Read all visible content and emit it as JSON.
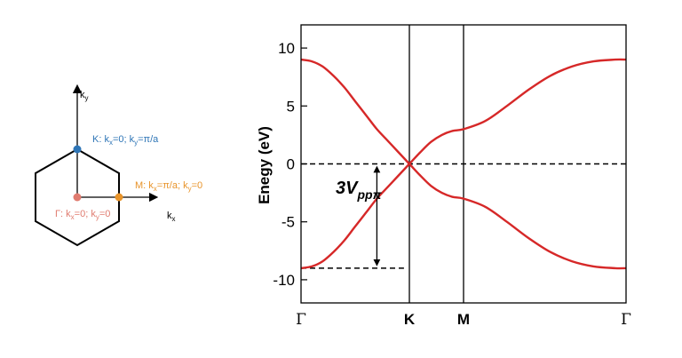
{
  "brillouin_zone": {
    "axis_x_label": "k",
    "axis_x_sub": "x",
    "axis_y_label": "k",
    "axis_y_sub": "y",
    "points": [
      {
        "name": "K",
        "color": "#2e75b6",
        "text": [
          "K: k",
          "x",
          "=0; k",
          "y",
          "=π/a"
        ]
      },
      {
        "name": "M",
        "color": "#e8942b",
        "text": [
          "M: k",
          "x",
          "=π/a; k",
          "y",
          "=0"
        ]
      },
      {
        "name": "Gamma",
        "color": "#e07b6f",
        "text": [
          "Γ: k",
          "x",
          "=0; k",
          "y",
          "=0"
        ]
      }
    ]
  },
  "chart_data": {
    "type": "line",
    "ylabel": "Enegy (eV)",
    "ylim": [
      -12,
      12
    ],
    "yticks": [
      10,
      5,
      0,
      -5,
      -10
    ],
    "xlim": [
      0,
      3
    ],
    "x_ticks": [
      {
        "pos": 0,
        "label": "Γ",
        "style": "serif"
      },
      {
        "pos": 1,
        "label": "K",
        "style": "bold"
      },
      {
        "pos": 1.5,
        "label": "M",
        "style": "bold"
      },
      {
        "pos": 3,
        "label": "Γ",
        "style": "serif"
      }
    ],
    "vertical_lines": [
      1,
      1.5
    ],
    "dashed_lines": [
      {
        "y": 0,
        "x_from": 0,
        "x_to": 3
      },
      {
        "y": -9,
        "x_from": 0,
        "x_to": 0.95
      }
    ],
    "series_color": "#d62828",
    "series": [
      {
        "x": [
          0,
          0.1,
          0.2,
          0.3,
          0.4,
          0.5,
          0.6,
          0.7,
          0.8,
          0.9,
          1.0,
          1.1,
          1.2,
          1.3,
          1.4,
          1.5,
          1.7,
          1.9,
          2.1,
          2.3,
          2.5,
          2.7,
          2.9,
          3.0
        ],
        "y": [
          9,
          8.85,
          8.4,
          7.6,
          6.6,
          5.4,
          4.2,
          3.0,
          2.0,
          1.0,
          0,
          -1.0,
          -1.9,
          -2.5,
          -2.85,
          -3.0,
          -3.7,
          -5.0,
          -6.4,
          -7.6,
          -8.4,
          -8.85,
          -9.0,
          -9.0
        ]
      },
      {
        "x": [
          0,
          0.1,
          0.2,
          0.3,
          0.4,
          0.5,
          0.6,
          0.7,
          0.8,
          0.9,
          1.0,
          1.1,
          1.2,
          1.3,
          1.4,
          1.5,
          1.7,
          1.9,
          2.1,
          2.3,
          2.5,
          2.7,
          2.9,
          3.0
        ],
        "y": [
          -9,
          -8.85,
          -8.4,
          -7.6,
          -6.6,
          -5.4,
          -4.2,
          -3.0,
          -2.0,
          -1.0,
          0,
          1.0,
          1.9,
          2.5,
          2.85,
          3.0,
          3.7,
          5.0,
          6.4,
          7.6,
          8.4,
          8.85,
          9.0,
          9.0
        ]
      }
    ],
    "annotation": {
      "main": "3V",
      "sub": "ppπ",
      "arrow_x": 0.7,
      "y_from": 0,
      "y_to": -9
    }
  }
}
